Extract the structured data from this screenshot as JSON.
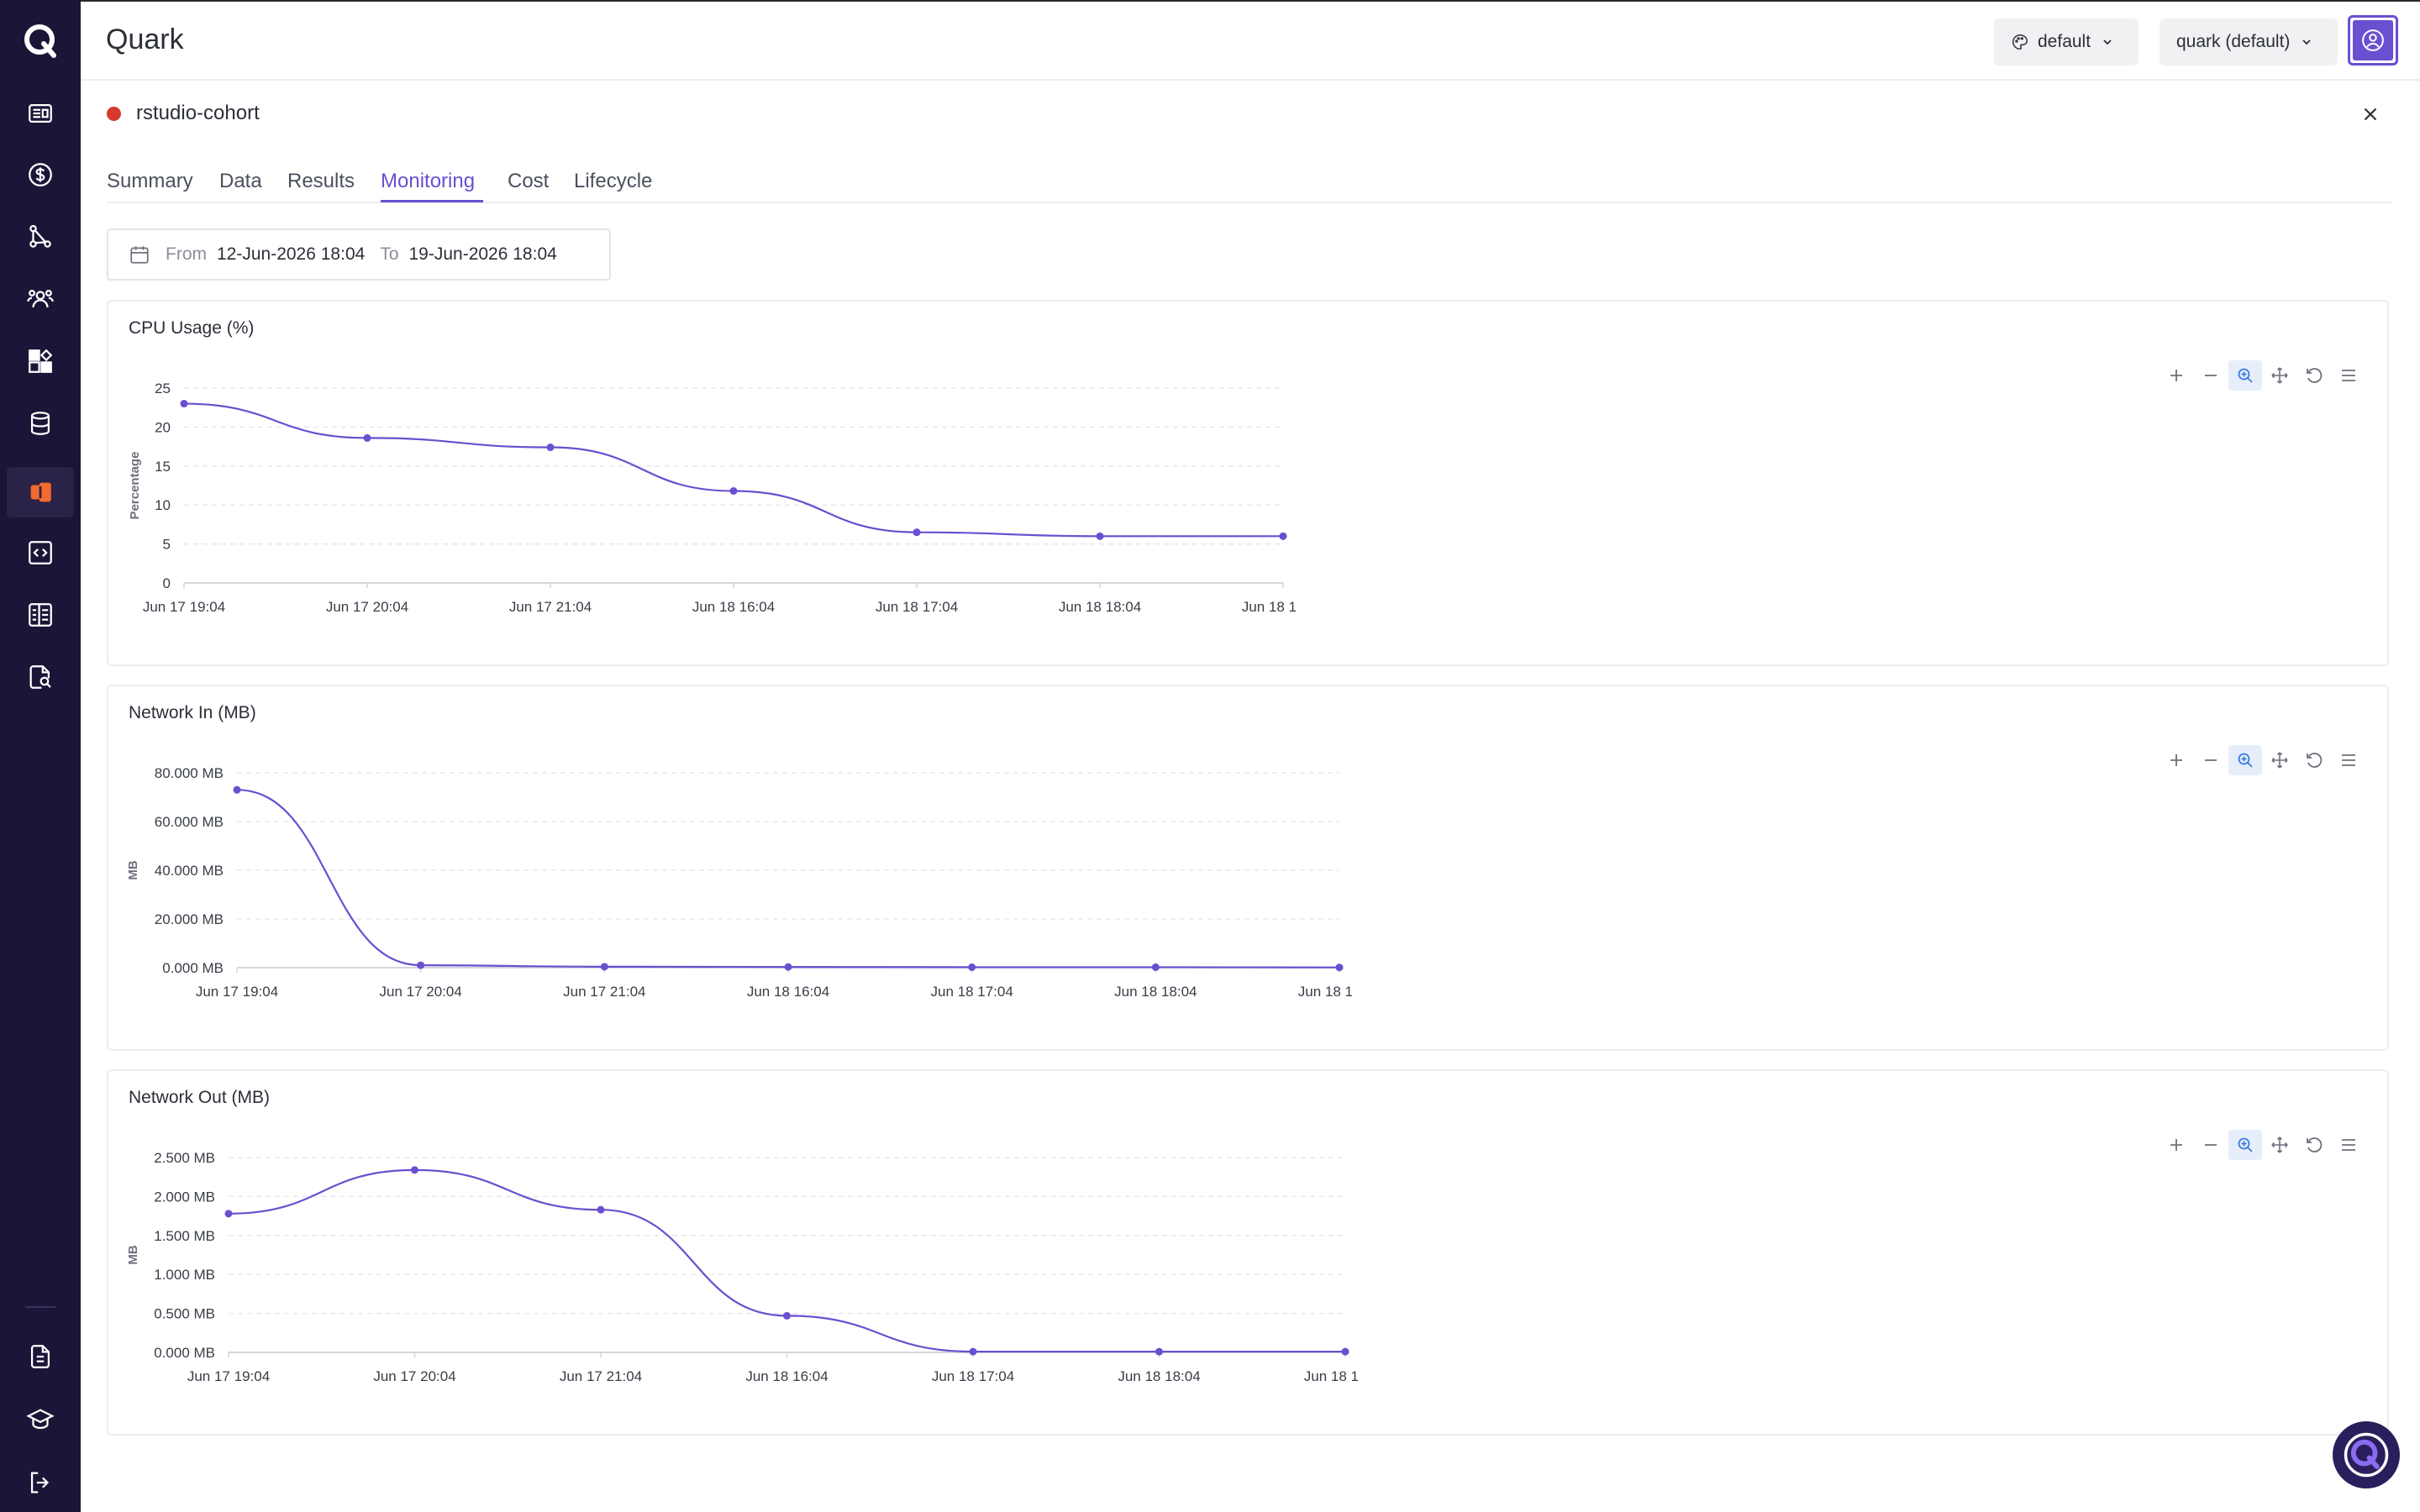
{
  "app": {
    "title": "Quark"
  },
  "header": {
    "theme_dropdown": {
      "label": "default",
      "icon": "palette-icon"
    },
    "tenant_dropdown": {
      "label": "quark (default)"
    },
    "avatar_icon": "user-icon"
  },
  "sidebar": {
    "items": [
      {
        "name": "dashboard-icon"
      },
      {
        "name": "billing-icon"
      },
      {
        "name": "pipelines-icon"
      },
      {
        "name": "teams-icon"
      },
      {
        "name": "apps-icon"
      },
      {
        "name": "database-icon"
      },
      {
        "name": "jobs-icon",
        "active": true
      },
      {
        "name": "code-icon"
      },
      {
        "name": "catalog-icon"
      },
      {
        "name": "document-search-icon"
      }
    ],
    "bottom_items": [
      {
        "name": "docs-icon"
      },
      {
        "name": "learn-icon"
      },
      {
        "name": "logout-icon"
      }
    ],
    "active_color": "#f26a2e"
  },
  "job": {
    "name": "rstudio-cohort",
    "status_color": "#d63a2f"
  },
  "tabs": [
    {
      "label": "Summary"
    },
    {
      "label": "Data"
    },
    {
      "label": "Results"
    },
    {
      "label": "Monitoring",
      "active": true
    },
    {
      "label": "Cost"
    },
    {
      "label": "Lifecycle"
    }
  ],
  "date_range": {
    "from_label": "From",
    "from_value": "12-Jun-2026 18:04",
    "to_label": "To",
    "to_value": "19-Jun-2026 18:04"
  },
  "accent_color": "#6a4fd0",
  "charts": [
    {
      "title": "CPU Usage (%)",
      "chart_data": {
        "type": "line",
        "x": [
          "Jun 17 19:04",
          "Jun 17 20:04",
          "Jun 17 21:04",
          "Jun 18 16:04",
          "Jun 18 17:04",
          "Jun 18 18:04",
          "Jun 18 1"
        ],
        "values": [
          23,
          18.6,
          17.4,
          11.8,
          6.5,
          6.0,
          6.0
        ],
        "ylabel": "Percentage",
        "yticks": [
          "0",
          "5",
          "10",
          "15",
          "20",
          "25"
        ],
        "ylim": [
          0,
          25
        ],
        "grid": true
      }
    },
    {
      "title": "Network In (MB)",
      "chart_data": {
        "type": "line",
        "x": [
          "Jun 17 19:04",
          "Jun 17 20:04",
          "Jun 17 21:04",
          "Jun 18 16:04",
          "Jun 18 17:04",
          "Jun 18 18:04",
          "Jun 18 1"
        ],
        "values": [
          73,
          1.0,
          0.4,
          0.3,
          0.2,
          0.2,
          0.1
        ],
        "ylabel": "MB",
        "yticks": [
          "0.000 MB",
          "20.000 MB",
          "40.000 MB",
          "60.000 MB",
          "80.000 MB"
        ],
        "ylim": [
          0,
          80
        ],
        "grid": true
      }
    },
    {
      "title": "Network Out (MB)",
      "chart_data": {
        "type": "line",
        "x": [
          "Jun 17 19:04",
          "Jun 17 20:04",
          "Jun 17 21:04",
          "Jun 18 16:04",
          "Jun 18 17:04",
          "Jun 18 18:04",
          "Jun 18 1"
        ],
        "values": [
          1.78,
          2.34,
          1.83,
          0.47,
          0.01,
          0.01,
          0.01
        ],
        "ylabel": "MB",
        "yticks": [
          "0.000 MB",
          "0.500 MB",
          "1.000 MB",
          "1.500 MB",
          "2.000 MB",
          "2.500 MB"
        ],
        "ylim": [
          0,
          2.5
        ],
        "grid": true
      }
    }
  ],
  "toolbar_icons": [
    "zoom-in-icon",
    "zoom-out-icon",
    "selection-zoom-icon",
    "pan-icon",
    "reset-icon",
    "menu-icon"
  ]
}
